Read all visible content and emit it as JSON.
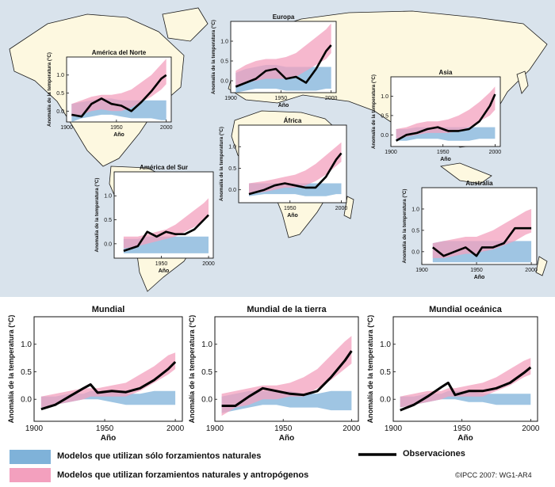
{
  "colors": {
    "ocean": "#d9e3ec",
    "land": "#fdf8e0",
    "coast": "#1a1a1a",
    "natural_band": "#7fb2d9",
    "anthro_band": "#f3a0be",
    "observations": "#000000"
  },
  "legend": {
    "natural": "Modelos que utilizan sólo forzamientos naturales",
    "anthro": "Modelos que utilizan forzamientos naturales y antropógenos",
    "observations": "Observaciones"
  },
  "credit": "©IPCC 2007: WG1-AR4",
  "chart_data": [
    {
      "type": "line",
      "title": "América del Norte",
      "xlabel": "Año",
      "ylabel": "Anomalía de la temperatura (°C)",
      "xlim": [
        1900,
        2005
      ],
      "ylim": [
        -0.3,
        1.5
      ],
      "xticks": [
        1900,
        1950,
        2000
      ],
      "yticks": [
        0.0,
        0.5,
        1.0
      ],
      "x": [
        1905,
        1915,
        1925,
        1935,
        1945,
        1955,
        1965,
        1975,
        1985,
        1995,
        2000
      ],
      "series": [
        {
          "name": "Observaciones",
          "values": [
            -0.1,
            -0.15,
            0.2,
            0.35,
            0.2,
            0.15,
            0.0,
            0.25,
            0.55,
            0.9,
            1.0
          ]
        },
        {
          "name": "Modelos que utilizan sólo forzamientos naturales",
          "lower": [
            -0.3,
            -0.2,
            -0.15,
            -0.1,
            -0.1,
            -0.15,
            -0.2,
            -0.2,
            -0.2,
            -0.25,
            -0.25
          ],
          "upper": [
            0.2,
            0.25,
            0.3,
            0.35,
            0.35,
            0.3,
            0.3,
            0.3,
            0.3,
            0.3,
            0.3
          ]
        },
        {
          "name": "Modelos que utilizan forzamientos naturales y antropógenos",
          "lower": [
            -0.15,
            -0.1,
            0.0,
            0.05,
            0.0,
            0.0,
            0.1,
            0.25,
            0.4,
            0.6,
            0.75
          ],
          "upper": [
            0.2,
            0.3,
            0.4,
            0.45,
            0.45,
            0.5,
            0.6,
            0.8,
            1.0,
            1.3,
            1.45
          ]
        }
      ]
    },
    {
      "type": "line",
      "title": "Europa",
      "xlabel": "Año",
      "ylabel": "Anomalía de la temperatura (°C)",
      "xlim": [
        1900,
        2005
      ],
      "ylim": [
        -0.3,
        1.5
      ],
      "xticks": [
        1900,
        1950,
        2000
      ],
      "yticks": [
        0.0,
        0.5,
        1.0
      ],
      "x": [
        1905,
        1915,
        1925,
        1935,
        1945,
        1955,
        1965,
        1975,
        1985,
        1995,
        2000
      ],
      "series": [
        {
          "name": "Observaciones",
          "values": [
            -0.15,
            -0.05,
            0.05,
            0.25,
            0.3,
            0.05,
            0.1,
            -0.05,
            0.3,
            0.75,
            0.9
          ]
        },
        {
          "name": "Modelos que utilizan sólo forzamientos naturales",
          "lower": [
            -0.3,
            -0.25,
            -0.2,
            -0.2,
            -0.2,
            -0.25,
            -0.25,
            -0.25,
            -0.25,
            -0.2,
            -0.2
          ],
          "upper": [
            0.2,
            0.3,
            0.35,
            0.4,
            0.4,
            0.35,
            0.35,
            0.35,
            0.35,
            0.35,
            0.35
          ]
        },
        {
          "name": "Modelos que utilizan forzamientos naturales y antropógenos",
          "lower": [
            -0.15,
            -0.05,
            0.0,
            0.05,
            0.05,
            0.05,
            0.1,
            0.25,
            0.4,
            0.55,
            0.7
          ],
          "upper": [
            0.25,
            0.4,
            0.5,
            0.55,
            0.55,
            0.6,
            0.7,
            0.9,
            1.1,
            1.3,
            1.45
          ]
        }
      ]
    },
    {
      "type": "line",
      "title": "Asia",
      "xlabel": "Año",
      "ylabel": "Anomalía de la temperatura (°C)",
      "xlim": [
        1900,
        2005
      ],
      "ylim": [
        -0.3,
        1.5
      ],
      "xticks": [
        1900,
        1950,
        2000
      ],
      "yticks": [
        0.0,
        0.5,
        1.0
      ],
      "x": [
        1905,
        1915,
        1925,
        1935,
        1945,
        1955,
        1965,
        1975,
        1985,
        1995,
        2000
      ],
      "series": [
        {
          "name": "Observaciones",
          "values": [
            -0.15,
            0.0,
            0.05,
            0.15,
            0.2,
            0.1,
            0.1,
            0.15,
            0.35,
            0.75,
            1.05
          ]
        },
        {
          "name": "Modelos que utilizan sólo forzamientos naturales",
          "lower": [
            -0.15,
            -0.15,
            -0.1,
            -0.1,
            -0.1,
            -0.15,
            -0.15,
            -0.15,
            -0.1,
            -0.1,
            -0.1
          ],
          "upper": [
            0.15,
            0.15,
            0.2,
            0.2,
            0.2,
            0.2,
            0.2,
            0.2,
            0.2,
            0.2,
            0.2
          ]
        },
        {
          "name": "Modelos que utilizan forzamientos naturales y antropógenos",
          "lower": [
            -0.1,
            -0.05,
            0.0,
            0.05,
            0.05,
            0.05,
            0.1,
            0.2,
            0.35,
            0.5,
            0.65
          ],
          "upper": [
            0.15,
            0.2,
            0.3,
            0.35,
            0.35,
            0.4,
            0.5,
            0.65,
            0.85,
            1.1,
            1.25
          ]
        }
      ]
    },
    {
      "type": "line",
      "title": "África",
      "xlabel": "Año",
      "ylabel": "Anomalía de la temperatura (°C)",
      "xlim": [
        1900,
        2005
      ],
      "ylim": [
        -0.3,
        1.5
      ],
      "xticks": [
        1950,
        2000
      ],
      "yticks": [
        0.0,
        0.5,
        1.0
      ],
      "x": [
        1910,
        1925,
        1935,
        1945,
        1955,
        1965,
        1975,
        1985,
        1995,
        2000
      ],
      "series": [
        {
          "name": "Observaciones",
          "values": [
            -0.1,
            0.0,
            0.1,
            0.15,
            0.1,
            0.05,
            0.05,
            0.3,
            0.7,
            0.85
          ]
        },
        {
          "name": "Modelos que utilizan sólo forzamientos naturales",
          "lower": [
            -0.15,
            -0.1,
            -0.1,
            -0.1,
            -0.1,
            -0.15,
            -0.15,
            -0.15,
            -0.1,
            -0.1
          ],
          "upper": [
            0.15,
            0.15,
            0.15,
            0.15,
            0.15,
            0.15,
            0.15,
            0.15,
            0.15,
            0.15
          ]
        },
        {
          "name": "Modelos que utilizan forzamientos naturales y antropógenos",
          "lower": [
            -0.1,
            -0.05,
            0.0,
            0.05,
            0.05,
            0.1,
            0.2,
            0.35,
            0.55,
            0.65
          ],
          "upper": [
            0.15,
            0.2,
            0.25,
            0.3,
            0.35,
            0.45,
            0.6,
            0.8,
            1.0,
            1.1
          ]
        }
      ]
    },
    {
      "type": "line",
      "title": "América del Sur",
      "xlabel": "Año",
      "ylabel": "Anomalía de la temperatura (°C)",
      "xlim": [
        1900,
        2005
      ],
      "ylim": [
        -0.3,
        1.5
      ],
      "xticks": [
        1950,
        2000
      ],
      "yticks": [
        0.0,
        0.5,
        1.0
      ],
      "x": [
        1910,
        1925,
        1935,
        1945,
        1955,
        1965,
        1975,
        1985,
        1995,
        2000
      ],
      "series": [
        {
          "name": "Observaciones",
          "values": [
            -0.15,
            -0.05,
            0.25,
            0.15,
            0.25,
            0.2,
            0.2,
            0.3,
            0.5,
            0.6
          ]
        },
        {
          "name": "Modelos que utilizan sólo forzamientos naturales",
          "lower": [
            -0.2,
            -0.2,
            -0.2,
            -0.2,
            -0.2,
            -0.2,
            -0.2,
            -0.2,
            -0.2,
            -0.2
          ],
          "upper": [
            0.1,
            0.1,
            0.15,
            0.15,
            0.15,
            0.15,
            0.15,
            0.15,
            0.15,
            0.15
          ]
        },
        {
          "name": "Modelos que utilizan forzamientos naturales y antropógenos",
          "lower": [
            -0.1,
            -0.05,
            0.0,
            0.05,
            0.1,
            0.15,
            0.25,
            0.35,
            0.5,
            0.55
          ],
          "upper": [
            0.15,
            0.15,
            0.2,
            0.25,
            0.3,
            0.4,
            0.55,
            0.7,
            0.85,
            0.95
          ]
        }
      ]
    },
    {
      "type": "line",
      "title": "Australia",
      "xlabel": "Año",
      "ylabel": "Anomalía de la temperatura (°C)",
      "xlim": [
        1900,
        2005
      ],
      "ylim": [
        -0.3,
        1.5
      ],
      "xticks": [
        1900,
        1950,
        2000
      ],
      "yticks": [
        0.0,
        0.5,
        1.0
      ],
      "x": [
        1910,
        1920,
        1930,
        1940,
        1950,
        1955,
        1965,
        1975,
        1985,
        1995,
        2000
      ],
      "series": [
        {
          "name": "Observaciones",
          "values": [
            0.1,
            -0.1,
            0.0,
            0.1,
            -0.1,
            0.1,
            0.1,
            0.2,
            0.55,
            0.55,
            0.55
          ]
        },
        {
          "name": "Modelos que utilizan sólo forzamientos naturales",
          "lower": [
            -0.25,
            -0.25,
            -0.25,
            -0.25,
            -0.25,
            -0.25,
            -0.25,
            -0.25,
            -0.25,
            -0.25,
            -0.25
          ],
          "upper": [
            0.2,
            0.25,
            0.25,
            0.25,
            0.25,
            0.25,
            0.25,
            0.25,
            0.25,
            0.25,
            0.25
          ]
        },
        {
          "name": "Modelos que utilizan forzamientos naturales y antropógenos",
          "lower": [
            -0.15,
            -0.15,
            -0.1,
            -0.05,
            -0.05,
            0.0,
            0.05,
            0.15,
            0.25,
            0.4,
            0.45
          ],
          "upper": [
            0.2,
            0.25,
            0.3,
            0.35,
            0.35,
            0.4,
            0.5,
            0.65,
            0.8,
            0.95,
            1.0
          ]
        }
      ]
    },
    {
      "type": "line",
      "title": "Mundial",
      "xlabel": "Año",
      "ylabel": "Anomalía de la temperatura (°C)",
      "xlim": [
        1900,
        2005
      ],
      "ylim": [
        -0.4,
        1.5
      ],
      "xticks": [
        1900,
        1950,
        2000
      ],
      "yticks": [
        0.0,
        0.5,
        1.0
      ],
      "x": [
        1905,
        1915,
        1925,
        1935,
        1940,
        1945,
        1955,
        1965,
        1975,
        1985,
        1995,
        2000
      ],
      "series": [
        {
          "name": "Observaciones",
          "values": [
            -0.18,
            -0.1,
            0.05,
            0.2,
            0.27,
            0.12,
            0.15,
            0.13,
            0.2,
            0.35,
            0.55,
            0.68
          ]
        },
        {
          "name": "Modelos que utilizan sólo forzamientos naturales",
          "lower": [
            -0.15,
            -0.1,
            -0.05,
            0.0,
            0.0,
            0.0,
            -0.05,
            -0.1,
            -0.1,
            -0.1,
            -0.1,
            -0.1
          ],
          "upper": [
            0.05,
            0.05,
            0.1,
            0.1,
            0.15,
            0.15,
            0.15,
            0.1,
            0.1,
            0.15,
            0.15,
            0.15
          ]
        },
        {
          "name": "Modelos que utilizan forzamientos naturales y antropógenos",
          "lower": [
            -0.15,
            -0.1,
            -0.05,
            0.0,
            0.05,
            0.05,
            0.05,
            0.05,
            0.15,
            0.3,
            0.45,
            0.55
          ],
          "upper": [
            0.05,
            0.1,
            0.15,
            0.2,
            0.2,
            0.2,
            0.25,
            0.3,
            0.45,
            0.6,
            0.8,
            0.85
          ]
        }
      ]
    },
    {
      "type": "line",
      "title": "Mundial de la tierra",
      "xlabel": "Año",
      "ylabel": "Anomalía de la temperatura (°C)",
      "xlim": [
        1900,
        2005
      ],
      "ylim": [
        -0.4,
        1.5
      ],
      "xticks": [
        1900,
        1950,
        2000
      ],
      "yticks": [
        0.0,
        0.5,
        1.0
      ],
      "x": [
        1905,
        1915,
        1925,
        1935,
        1945,
        1955,
        1965,
        1975,
        1985,
        1995,
        2000
      ],
      "series": [
        {
          "name": "Observaciones",
          "values": [
            -0.12,
            -0.12,
            0.05,
            0.2,
            0.15,
            0.1,
            0.08,
            0.15,
            0.4,
            0.7,
            0.88
          ]
        },
        {
          "name": "Modelos que utilizan sólo forzamientos naturales",
          "lower": [
            -0.25,
            -0.2,
            -0.15,
            -0.1,
            -0.1,
            -0.15,
            -0.15,
            -0.15,
            -0.2,
            -0.2,
            -0.2
          ],
          "upper": [
            0.05,
            0.1,
            0.15,
            0.15,
            0.15,
            0.15,
            0.1,
            0.1,
            0.15,
            0.15,
            0.15
          ]
        },
        {
          "name": "Modelos que utilizan forzamientos naturales y antropógenos",
          "lower": [
            -0.3,
            -0.15,
            -0.1,
            0.0,
            0.0,
            0.05,
            0.05,
            0.2,
            0.35,
            0.55,
            0.65
          ],
          "upper": [
            0.1,
            0.15,
            0.2,
            0.25,
            0.25,
            0.3,
            0.4,
            0.55,
            0.8,
            1.05,
            1.15
          ]
        }
      ]
    },
    {
      "type": "line",
      "title": "Mundial oceánica",
      "xlabel": "Año",
      "ylabel": "Anomalía de la temperatura (°C)",
      "xlim": [
        1900,
        2005
      ],
      "ylim": [
        -0.4,
        1.5
      ],
      "xticks": [
        1900,
        1950,
        2000
      ],
      "yticks": [
        0.0,
        0.5,
        1.0
      ],
      "x": [
        1905,
        1915,
        1925,
        1935,
        1940,
        1945,
        1955,
        1965,
        1975,
        1985,
        1995,
        2000
      ],
      "series": [
        {
          "name": "Observaciones",
          "values": [
            -0.2,
            -0.1,
            0.05,
            0.22,
            0.3,
            0.08,
            0.15,
            0.15,
            0.2,
            0.3,
            0.48,
            0.58
          ]
        },
        {
          "name": "Modelos que utilizan sólo forzamientos naturales",
          "lower": [
            -0.15,
            -0.1,
            -0.05,
            0.0,
            0.0,
            0.0,
            -0.05,
            -0.05,
            -0.1,
            -0.1,
            -0.1,
            -0.1
          ],
          "upper": [
            0.05,
            0.05,
            0.1,
            0.1,
            0.15,
            0.15,
            0.15,
            0.1,
            0.1,
            0.1,
            0.1,
            0.1
          ]
        },
        {
          "name": "Modelos que utilizan forzamientos naturales y antropógenos",
          "lower": [
            -0.15,
            -0.1,
            -0.05,
            0.0,
            0.05,
            0.05,
            0.05,
            0.05,
            0.15,
            0.25,
            0.4,
            0.45
          ],
          "upper": [
            0.05,
            0.1,
            0.15,
            0.15,
            0.2,
            0.2,
            0.25,
            0.3,
            0.4,
            0.55,
            0.7,
            0.75
          ]
        }
      ]
    }
  ]
}
